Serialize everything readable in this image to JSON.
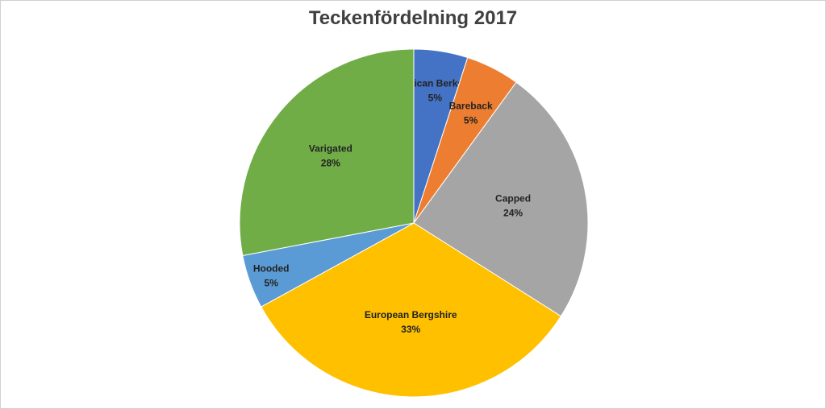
{
  "chart_data": {
    "type": "pie",
    "title": "Teckenfördelning 2017",
    "categories": [
      "American Berkshire",
      "Bareback",
      "Capped",
      "European Bergshire",
      "Hooded",
      "Varigated"
    ],
    "values": [
      5,
      5,
      24,
      33,
      5,
      28
    ],
    "value_labels": [
      "5%",
      "5%",
      "24%",
      "33%",
      "5%",
      "28%"
    ],
    "colors": [
      "#4472C4",
      "#ED7D31",
      "#A5A5A5",
      "#FFC000",
      "#5B9BD5",
      "#70AD47"
    ],
    "start_angle": "12 o'clock",
    "direction": "clockwise",
    "legend": "none",
    "data_labels": "category name and percentage on slices"
  }
}
